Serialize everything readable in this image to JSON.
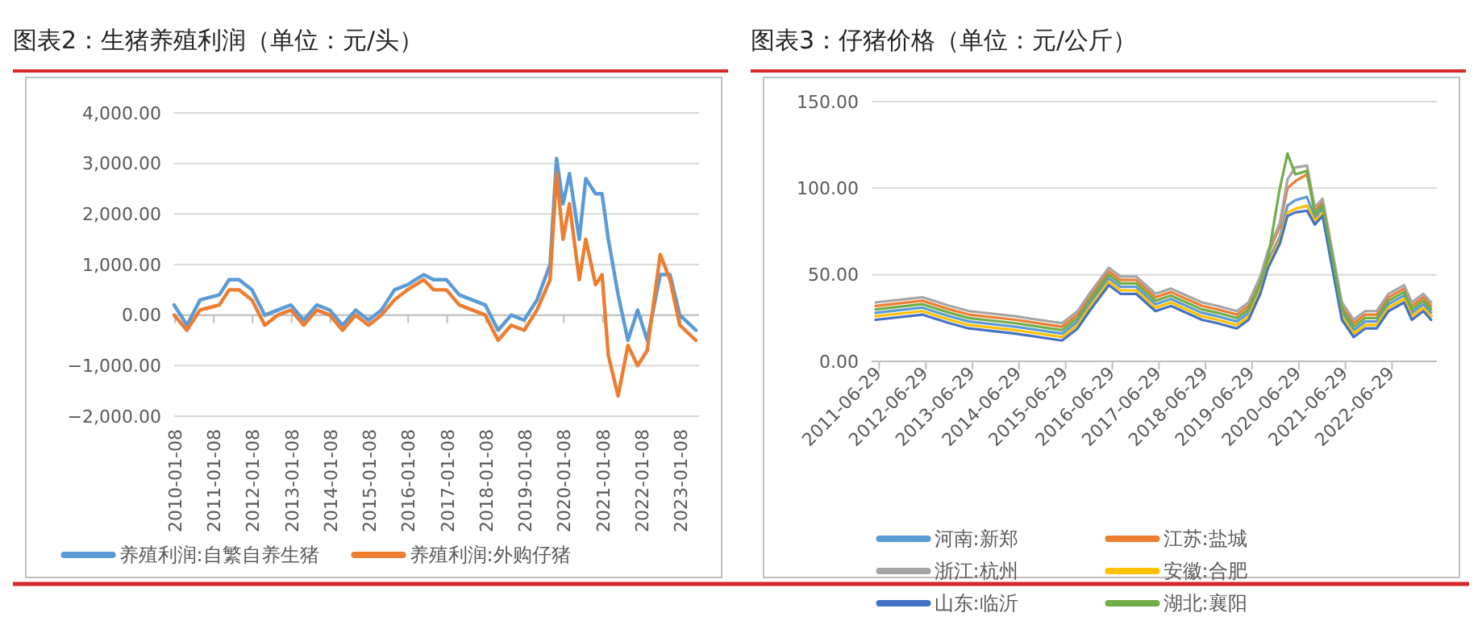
{
  "chart_data": [
    {
      "type": "line",
      "title": "图表2：生猪养殖利润（单位：元/头）",
      "xlim": [
        "2010-01-01",
        "2023-07-01"
      ],
      "xticks": [
        "2010-01-08",
        "2011-01-08",
        "2012-01-08",
        "2013-01-08",
        "2014-01-08",
        "2015-01-08",
        "2016-01-08",
        "2017-01-08",
        "2018-01-08",
        "2019-01-08",
        "2020-01-08",
        "2021-01-08",
        "2022-01-08",
        "2023-01-08"
      ],
      "ylim": [
        -2000,
        4000
      ],
      "yticks": [
        {
          "value": -2000,
          "label": "−2,000.00"
        },
        {
          "value": -1000,
          "label": "−1,000.00"
        },
        {
          "value": 0,
          "label": "0.00"
        },
        {
          "value": 1000,
          "label": "1,000.00"
        },
        {
          "value": 2000,
          "label": "2,000.00"
        },
        {
          "value": 3000,
          "label": "3,000.00"
        },
        {
          "value": 4000,
          "label": "4,000.00"
        }
      ],
      "grid": "y",
      "legend": "bottom",
      "x": [
        "2010-01",
        "2010-05",
        "2010-09",
        "2011-03",
        "2011-06",
        "2011-09",
        "2012-01",
        "2012-05",
        "2012-09",
        "2013-01",
        "2013-05",
        "2013-09",
        "2014-01",
        "2014-05",
        "2014-09",
        "2015-01",
        "2015-05",
        "2015-09",
        "2016-01",
        "2016-06",
        "2016-09",
        "2017-01",
        "2017-05",
        "2017-09",
        "2018-01",
        "2018-05",
        "2018-09",
        "2019-01",
        "2019-05",
        "2019-09",
        "2019-11",
        "2020-01",
        "2020-03",
        "2020-06",
        "2020-08",
        "2020-11",
        "2021-01",
        "2021-03",
        "2021-06",
        "2021-09",
        "2021-12",
        "2022-03",
        "2022-07",
        "2022-10",
        "2023-01",
        "2023-06"
      ],
      "series": [
        {
          "name": "养殖利润:自繁自养生猪",
          "color": "#5b9bd5",
          "values": [
            200,
            -200,
            300,
            400,
            700,
            700,
            500,
            0,
            100,
            200,
            -100,
            200,
            100,
            -200,
            100,
            -100,
            100,
            500,
            600,
            800,
            700,
            700,
            400,
            300,
            200,
            -300,
            0,
            -100,
            300,
            1000,
            3100,
            2200,
            2800,
            1500,
            2700,
            2400,
            2400,
            1500,
            400,
            -500,
            100,
            -500,
            800,
            800,
            0,
            -300
          ]
        },
        {
          "name": "养殖利润:外购仔猪",
          "color": "#ed7d31",
          "values": [
            0,
            -300,
            100,
            200,
            500,
            500,
            300,
            -200,
            0,
            100,
            -200,
            100,
            0,
            -300,
            0,
            -200,
            0,
            300,
            500,
            700,
            500,
            500,
            200,
            100,
            0,
            -500,
            -200,
            -300,
            100,
            700,
            2800,
            1500,
            2200,
            700,
            1500,
            600,
            800,
            -800,
            -1600,
            -600,
            -1000,
            -700,
            1200,
            700,
            -200,
            -500
          ]
        }
      ]
    },
    {
      "type": "line",
      "title": "图表3：仔猪价格（单位：元/公斤）",
      "xlim": [
        "2011-05-01",
        "2023-06-15"
      ],
      "xticks": [
        "2011-06-29",
        "2012-06-29",
        "2013-06-29",
        "2014-06-29",
        "2015-06-29",
        "2016-06-29",
        "2017-06-29",
        "2018-06-29",
        "2019-06-29",
        "2020-06-29",
        "2021-06-29",
        "2022-06-29"
      ],
      "ylim": [
        0,
        150
      ],
      "yticks": [
        {
          "value": 0,
          "label": "0.00"
        },
        {
          "value": 50,
          "label": "50.00"
        },
        {
          "value": 100,
          "label": "100.00"
        },
        {
          "value": 150,
          "label": "150.00"
        }
      ],
      "grid": "y",
      "legend": "bottom",
      "x": [
        "2011-06",
        "2012-06",
        "2013-01",
        "2013-06",
        "2014-06",
        "2015-06",
        "2015-10",
        "2016-01",
        "2016-06",
        "2016-09",
        "2017-01",
        "2017-06",
        "2017-10",
        "2018-06",
        "2018-10",
        "2019-03",
        "2019-06",
        "2019-09",
        "2019-11",
        "2020-02",
        "2020-04",
        "2020-06",
        "2020-09",
        "2020-11",
        "2021-01",
        "2021-06",
        "2021-09",
        "2021-12",
        "2022-03",
        "2022-06",
        "2022-10",
        "2022-12",
        "2023-03",
        "2023-05"
      ],
      "series": [
        {
          "name": "河南:新郑",
          "color": "#5b9bd5",
          "values": [
            28,
            31,
            26,
            23,
            20,
            16,
            23,
            33,
            48,
            43,
            43,
            33,
            36,
            28,
            26,
            23,
            28,
            43,
            58,
            72,
            90,
            93,
            95,
            83,
            88,
            28,
            18,
            23,
            23,
            33,
            38,
            28,
            33,
            28
          ]
        },
        {
          "name": "江苏:盐城",
          "color": "#ed7d31",
          "values": [
            32,
            35,
            30,
            27,
            24,
            20,
            27,
            37,
            52,
            47,
            47,
            37,
            40,
            32,
            30,
            27,
            32,
            47,
            62,
            78,
            100,
            104,
            108,
            87,
            92,
            32,
            22,
            27,
            27,
            37,
            42,
            32,
            37,
            32
          ]
        },
        {
          "name": "浙江:杭州",
          "color": "#a5a5a5",
          "values": [
            34,
            37,
            32,
            29,
            26,
            22,
            29,
            39,
            54,
            49,
            49,
            39,
            42,
            34,
            32,
            29,
            34,
            49,
            64,
            80,
            105,
            112,
            113,
            89,
            94,
            34,
            24,
            29,
            29,
            39,
            44,
            34,
            39,
            34
          ]
        },
        {
          "name": "安徽:合肥",
          "color": "#ffc000",
          "values": [
            26,
            29,
            24,
            21,
            18,
            14,
            21,
            31,
            46,
            41,
            41,
            31,
            34,
            26,
            24,
            21,
            26,
            41,
            56,
            70,
            86,
            88,
            90,
            81,
            86,
            26,
            16,
            21,
            21,
            31,
            36,
            26,
            31,
            26
          ]
        },
        {
          "name": "山东:临沂",
          "color": "#4472c4",
          "values": [
            24,
            27,
            22,
            19,
            16,
            12,
            19,
            29,
            44,
            39,
            39,
            29,
            32,
            24,
            22,
            19,
            24,
            39,
            54,
            68,
            84,
            86,
            87,
            79,
            84,
            24,
            14,
            19,
            19,
            29,
            34,
            24,
            29,
            24
          ]
        },
        {
          "name": "湖北:襄阳",
          "color": "#70ad47",
          "values": [
            30,
            33,
            28,
            25,
            22,
            18,
            25,
            35,
            50,
            45,
            45,
            35,
            38,
            30,
            28,
            25,
            30,
            45,
            60,
            100,
            120,
            108,
            110,
            85,
            90,
            30,
            20,
            25,
            25,
            35,
            40,
            30,
            35,
            30
          ]
        }
      ]
    }
  ]
}
